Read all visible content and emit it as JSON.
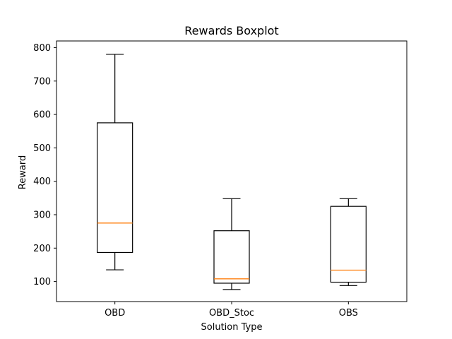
{
  "chart_data": {
    "type": "boxplot",
    "title": "Rewards Boxplot",
    "xlabel": "Solution Type",
    "ylabel": "Reward",
    "ylim": [
      40,
      820
    ],
    "yticks": [
      100,
      200,
      300,
      400,
      500,
      600,
      700,
      800
    ],
    "grid": false,
    "categories": [
      "OBD",
      "OBD_Stoc",
      "OBS"
    ],
    "boxes": [
      {
        "category": "OBD",
        "whisker_low": 135,
        "q1": 187,
        "median": 275,
        "q3": 575,
        "whisker_high": 780
      },
      {
        "category": "OBD_Stoc",
        "whisker_low": 76,
        "q1": 95,
        "median": 108,
        "q3": 252,
        "whisker_high": 348
      },
      {
        "category": "OBS",
        "whisker_low": 88,
        "q1": 98,
        "median": 134,
        "q3": 325,
        "whisker_high": 348
      }
    ],
    "colors": {
      "box": "#000000",
      "median": "#ff7f0e",
      "axes": "#000000",
      "background": "#ffffff"
    }
  }
}
